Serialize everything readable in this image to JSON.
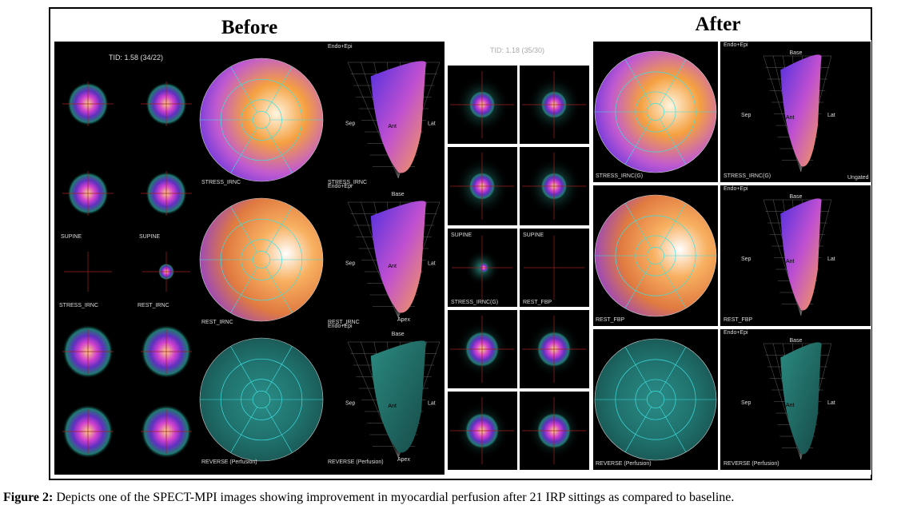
{
  "figure": {
    "before_title": "Before",
    "after_title": "After"
  },
  "before": {
    "tid": "TID: 1.58 (34/22)",
    "small_labels": [
      "SUPINE",
      "SUPINE",
      "STRESS_IRNC",
      "REST_IRNC"
    ],
    "polar_labels": [
      "STRESS_IRNC",
      "REST_IRNC",
      "REVERSE (Perfusion)"
    ],
    "view_labels": [
      "STRESS_IRNC",
      "REST_IRNC",
      "REVERSE (Perfusion)"
    ]
  },
  "middle": {
    "tid": "TID: 1.18 (35/30)",
    "labels": [
      "SUPINE",
      "SUPINE",
      "STRESS_IRNC(G)",
      "REST_FBP"
    ]
  },
  "after": {
    "polar_labels": [
      "STRESS_IRNC(G)",
      "REST_FBP",
      "REVERSE (Perfusion)"
    ],
    "view_labels": [
      "STRESS_IRNC(G)",
      "REST_FBP",
      "REVERSE (Perfusion)"
    ],
    "ungated": "Ungated"
  },
  "view_terms": {
    "endo_epi": "Endo+Epi",
    "base": "Base",
    "apex": "Apex",
    "sep": "Sep",
    "lat": "Lat",
    "ant": "Ant"
  },
  "caption": {
    "label": "Figure 2:",
    "text": "Depicts one of the SPECT-MPI images showing improvement in myocardial perfusion after 21 IRP sittings as compared to baseline."
  }
}
